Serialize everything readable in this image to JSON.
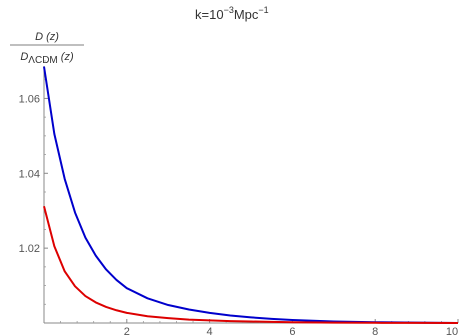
{
  "chart_data": {
    "type": "line",
    "title": {
      "prefix": "k=10",
      "exponent": "−3",
      "unit": "Mpc",
      "unit_exponent": "−1"
    },
    "ylabel": {
      "numerator": "D (z)",
      "denominator_prefix": "D",
      "denominator_sub": "ΛCDM",
      "denominator_suffix": " (z)"
    },
    "xlabel": "",
    "xlim": [
      0,
      10
    ],
    "ylim": [
      1.0,
      1.07
    ],
    "x_ticks": [
      2,
      4,
      6,
      8,
      10
    ],
    "x_tick_labels": [
      "2",
      "4",
      "6",
      "8",
      "10"
    ],
    "y_ticks": [
      1.02,
      1.04,
      1.06
    ],
    "y_tick_labels": [
      "1.02",
      "1.04",
      "1.06"
    ],
    "grid": false,
    "legend": "none",
    "series": [
      {
        "color": "#0000cc",
        "x": [
          0,
          0.25,
          0.5,
          0.75,
          1.0,
          1.25,
          1.5,
          1.75,
          2.0,
          2.5,
          3.0,
          3.5,
          4.0,
          4.5,
          5.0,
          5.5,
          6.0,
          7.0,
          8.0,
          9.0,
          10.0
        ],
        "y": [
          1.0685,
          1.0505,
          1.0385,
          1.0295,
          1.0228,
          1.018,
          1.0143,
          1.0115,
          1.0093,
          1.0066,
          1.0048,
          1.0036,
          1.0027,
          1.002,
          1.0015,
          1.0011,
          1.0008,
          1.0004,
          1.0002,
          1.0001,
          1.0
        ]
      },
      {
        "color": "#dd0000",
        "x": [
          0,
          0.25,
          0.5,
          0.75,
          1.0,
          1.25,
          1.5,
          1.75,
          2.0,
          2.5,
          3.0,
          3.5,
          4.0,
          4.5,
          5.0,
          5.5,
          6.0,
          7.0,
          8.0,
          9.0,
          10.0
        ],
        "y": [
          1.0312,
          1.0205,
          1.0138,
          1.0098,
          1.0072,
          1.0055,
          1.0043,
          1.0034,
          1.0027,
          1.0018,
          1.0013,
          1.0009,
          1.0007,
          1.0005,
          1.0004,
          1.0003,
          1.0002,
          1.0001,
          1.00005,
          1.00002,
          1.0
        ]
      }
    ]
  }
}
